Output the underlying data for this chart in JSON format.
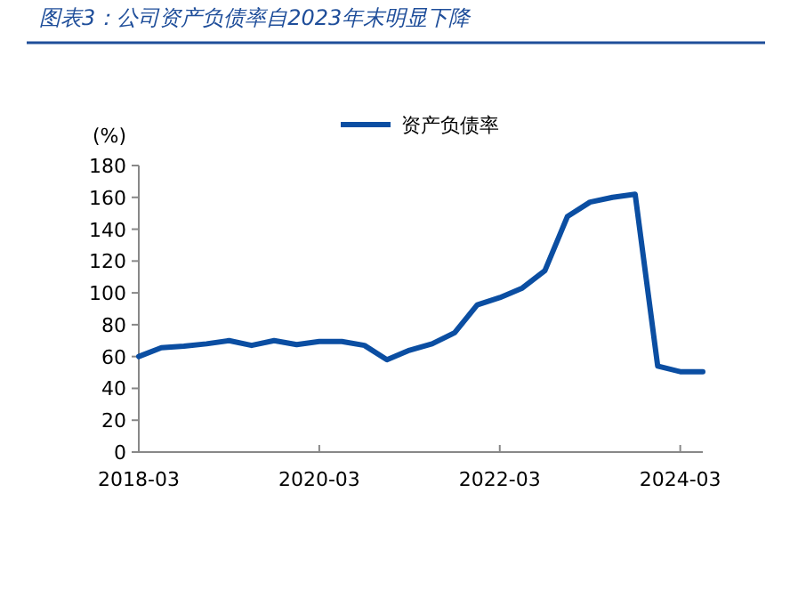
{
  "chart_data": {
    "type": "line",
    "title": "图表3：公司资产负债率自2023年末明显下降",
    "ylabel": "(%)",
    "legend": "top",
    "marker": "none",
    "line_style": "solid",
    "x": [
      "2018-03",
      "2018-06",
      "2018-09",
      "2018-12",
      "2019-03",
      "2019-06",
      "2019-09",
      "2019-12",
      "2020-03",
      "2020-06",
      "2020-09",
      "2020-12",
      "2021-03",
      "2021-06",
      "2021-09",
      "2021-12",
      "2022-03",
      "2022-06",
      "2022-09",
      "2022-12",
      "2023-03",
      "2023-06",
      "2023-09",
      "2023-12",
      "2024-03",
      "2024-06"
    ],
    "series": [
      {
        "name": "资产负债率",
        "color": "#0b4ea2",
        "values": [
          60,
          65.5,
          66.5,
          68,
          70,
          67,
          70,
          67.5,
          69.5,
          69.5,
          67,
          58,
          64,
          68,
          75,
          92.5,
          97,
          103,
          114,
          148,
          157,
          160,
          162,
          54,
          50.5,
          50.5
        ]
      }
    ],
    "xlim": [
      "2018-03",
      "2024-06"
    ],
    "xticks": [
      "2018-03",
      "2020-03",
      "2022-03",
      "2024-03"
    ],
    "ylim": [
      0,
      180
    ],
    "yticks": [
      0,
      20,
      40,
      60,
      80,
      100,
      120,
      140,
      160,
      180
    ]
  }
}
